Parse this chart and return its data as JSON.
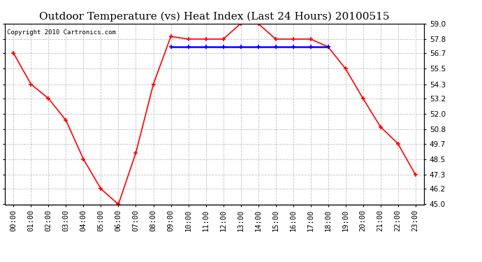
{
  "title": "Outdoor Temperature (vs) Heat Index (Last 24 Hours) 20100515",
  "copyright": "Copyright 2010 Cartronics.com",
  "hours": [
    "00:00",
    "01:00",
    "02:00",
    "03:00",
    "04:00",
    "05:00",
    "06:00",
    "07:00",
    "08:00",
    "09:00",
    "10:00",
    "11:00",
    "12:00",
    "13:00",
    "14:00",
    "15:00",
    "16:00",
    "17:00",
    "18:00",
    "19:00",
    "20:00",
    "21:00",
    "22:00",
    "23:00"
  ],
  "temp": [
    56.7,
    54.3,
    53.2,
    51.5,
    48.5,
    46.2,
    45.0,
    49.0,
    54.3,
    58.0,
    57.8,
    57.8,
    57.8,
    59.0,
    59.0,
    57.8,
    57.8,
    57.8,
    57.2,
    55.5,
    53.2,
    51.0,
    49.7,
    47.3
  ],
  "heat_index": [
    null,
    null,
    null,
    null,
    null,
    null,
    null,
    null,
    null,
    57.2,
    57.2,
    57.2,
    57.2,
    57.2,
    57.2,
    57.2,
    57.2,
    57.2,
    57.2,
    null,
    null,
    null,
    null,
    null
  ],
  "temp_color": "#ff0000",
  "heat_color": "#0000ff",
  "bg_color": "#ffffff",
  "grid_color": "#c0c0c0",
  "ylim_min": 45.0,
  "ylim_max": 59.0,
  "yticks": [
    45.0,
    46.2,
    47.3,
    48.5,
    49.7,
    50.8,
    52.0,
    53.2,
    54.3,
    55.5,
    56.7,
    57.8,
    59.0
  ],
  "title_fontsize": 11,
  "copyright_fontsize": 6.5,
  "tick_fontsize": 7.5
}
